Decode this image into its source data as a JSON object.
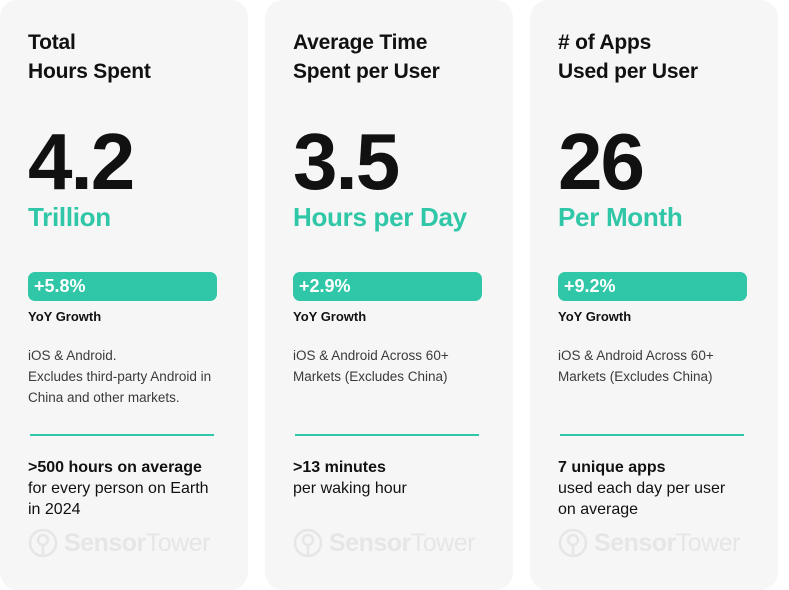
{
  "colors": {
    "accent": "#2fc7a7",
    "card_bg": "#f6f6f6",
    "text": "#111111",
    "watermark": "#e6e6e6"
  },
  "cards": [
    {
      "title": "Total\nHours Spent",
      "title_lines": [
        "Total",
        "Hours Spent"
      ],
      "value": "4.2",
      "unit": "Trillion",
      "growth": "+5.8%",
      "growth_label": "YoY Growth",
      "note_lines": [
        "iOS & Android.",
        "Excludes third-party Android in",
        "China and other markets."
      ],
      "fact_bold": ">500 hours on average",
      "fact_lines": [
        "for every person on Earth",
        "in 2024"
      ],
      "watermark": [
        "Sensor",
        "Tower"
      ]
    },
    {
      "title_lines": [
        "Average Time",
        "Spent per User"
      ],
      "value": "3.5",
      "unit": "Hours per Day",
      "growth": "+2.9%",
      "growth_label": "YoY Growth",
      "note_lines": [
        "iOS & Android Across 60+",
        "Markets (Excludes China)"
      ],
      "fact_bold": ">13 minutes",
      "fact_lines": [
        "per waking hour"
      ],
      "watermark": [
        "Sensor",
        "Tower"
      ]
    },
    {
      "title_lines": [
        "# of Apps",
        "Used per User"
      ],
      "value": "26",
      "unit": "Per Month",
      "growth": "+9.2%",
      "growth_label": "YoY Growth",
      "note_lines": [
        "iOS & Android Across 60+",
        "Markets (Excludes China)"
      ],
      "fact_bold": "7 unique apps",
      "fact_lines": [
        "used each day per user",
        "on average"
      ],
      "watermark": [
        "Sensor",
        "Tower"
      ]
    }
  ]
}
